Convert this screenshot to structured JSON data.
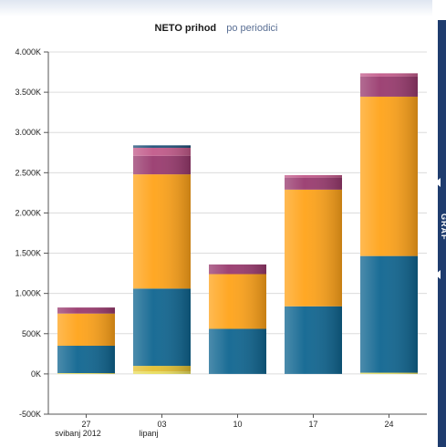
{
  "chart_data": {
    "type": "bar",
    "stacked": true,
    "title": "NETO prihod",
    "subtitle": "po periodici",
    "xlabel": "",
    "ylabel": "",
    "ylim": [
      -500,
      4000
    ],
    "yticks": [
      -500,
      0,
      500,
      1000,
      1500,
      2000,
      2500,
      3000,
      3500,
      4000
    ],
    "ytick_labels": [
      "-500K",
      "0K",
      "500K",
      "1.000K",
      "1.500K",
      "2.000K",
      "2.500K",
      "3.000K",
      "3.500K",
      "4.000K"
    ],
    "categories": [
      "27",
      "03",
      "10",
      "17",
      "24"
    ],
    "category_groups": [
      {
        "label": "svibanj 2012",
        "category": "27"
      },
      {
        "label": "lipanj",
        "category": "03"
      }
    ],
    "grid": true,
    "series": [
      {
        "color": "#e8de58",
        "values": [
          10,
          30,
          0,
          0,
          15
        ]
      },
      {
        "color": "#e3c030",
        "values": [
          0,
          70,
          0,
          0,
          0
        ]
      },
      {
        "color": "#0f6590",
        "values": [
          340,
          960,
          560,
          840,
          1450
        ]
      },
      {
        "color": "#ffa319",
        "values": [
          400,
          1420,
          680,
          1450,
          1980
        ]
      },
      {
        "color": "#993a6e",
        "values": [
          75,
          230,
          120,
          150,
          250
        ]
      },
      {
        "color": "#c25a8a",
        "values": [
          0,
          100,
          0,
          30,
          40
        ]
      },
      {
        "color": "#1e4f78",
        "values": [
          0,
          30,
          0,
          0,
          0
        ]
      }
    ]
  },
  "side_panel": {
    "label": "GRAF",
    "color": "#1f3c6e"
  }
}
